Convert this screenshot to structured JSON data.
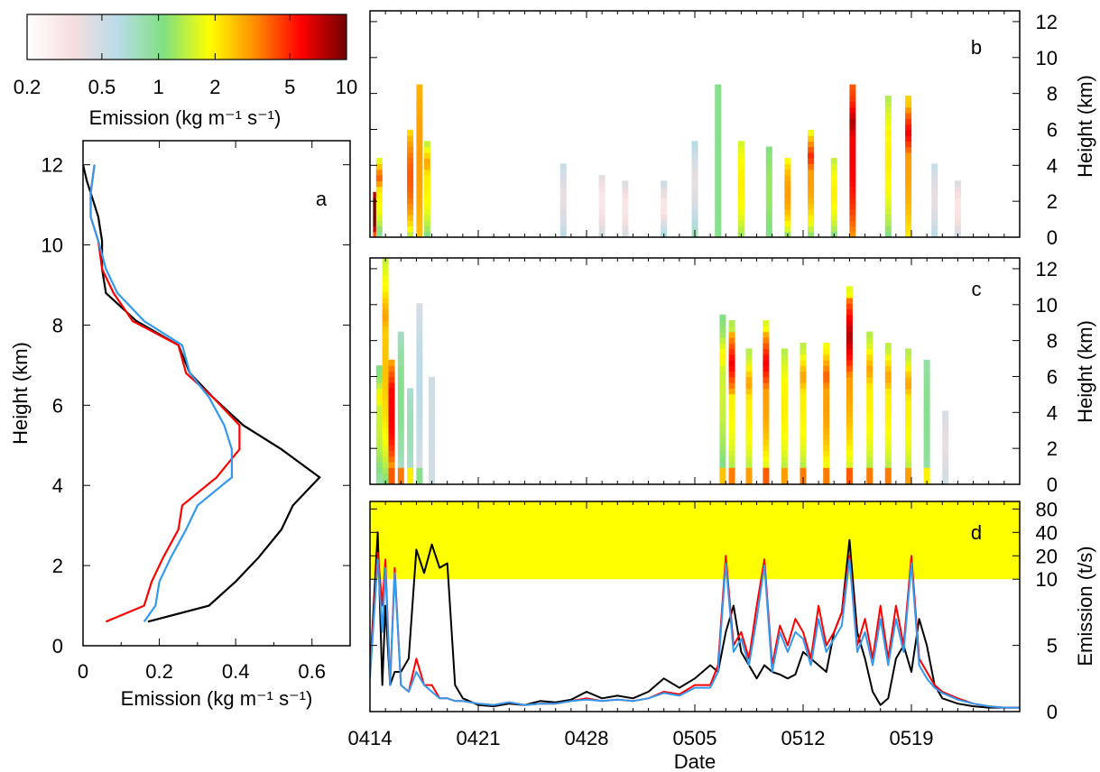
{
  "colorbar": {
    "label": "Emission (kg m⁻¹ s⁻¹)",
    "ticks": [
      0.2,
      0.5,
      1,
      2,
      5,
      10
    ],
    "tick_labels": [
      "0.2",
      "0.5",
      "1",
      "2",
      "5",
      "10"
    ],
    "scale": "log",
    "range": [
      0.2,
      10
    ],
    "colors": [
      "#ffffff",
      "#f6dede",
      "#b8dce8",
      "#80e080",
      "#ffff00",
      "#ff8c00",
      "#ff0000",
      "#700000"
    ]
  },
  "chart_data": [
    {
      "panel": "a",
      "type": "line",
      "xlabel": "Emission (kg m⁻¹ s⁻¹)",
      "ylabel": "Height (km)",
      "xlim": [
        0,
        0.7
      ],
      "ylim": [
        0,
        12.6
      ],
      "xticks": [
        0,
        0.2,
        0.4,
        0.6
      ],
      "yticks": [
        0,
        2,
        4,
        6,
        8,
        10,
        12
      ],
      "series": [
        {
          "color": "#000000",
          "x": [
            0.17,
            0.33,
            0.4,
            0.46,
            0.52,
            0.55,
            0.62,
            0.52,
            0.42,
            0.34,
            0.28,
            0.25,
            0.14,
            0.06,
            0.05,
            0.05,
            0.04,
            0.02,
            0.01,
            0.0
          ],
          "y": [
            0.6,
            1.0,
            1.6,
            2.2,
            2.9,
            3.5,
            4.2,
            4.9,
            5.5,
            6.2,
            6.8,
            7.5,
            8.1,
            8.8,
            9.4,
            10.1,
            10.7,
            11.3,
            11.6,
            12.0
          ]
        },
        {
          "color": "#ff0000",
          "x": [
            0.06,
            0.16,
            0.18,
            0.21,
            0.25,
            0.26,
            0.35,
            0.41,
            0.41,
            0.34,
            0.27,
            0.25,
            0.13,
            0.08,
            0.05,
            0.04,
            0.02,
            0.02,
            0.03
          ],
          "y": [
            0.6,
            1.0,
            1.6,
            2.2,
            2.9,
            3.5,
            4.2,
            4.9,
            5.5,
            6.2,
            6.8,
            7.5,
            8.1,
            8.8,
            9.4,
            10.1,
            10.7,
            11.3,
            12.0
          ]
        },
        {
          "color": "#3399ee",
          "x": [
            0.16,
            0.19,
            0.2,
            0.23,
            0.27,
            0.3,
            0.39,
            0.39,
            0.37,
            0.33,
            0.28,
            0.26,
            0.16,
            0.09,
            0.06,
            0.04,
            0.02,
            0.02,
            0.03
          ],
          "y": [
            0.6,
            1.0,
            1.6,
            2.2,
            2.9,
            3.5,
            4.2,
            4.9,
            5.5,
            6.2,
            6.8,
            7.5,
            8.1,
            8.8,
            9.4,
            10.1,
            10.7,
            11.3,
            12.0
          ]
        }
      ]
    },
    {
      "panel": "b",
      "type": "heatmap",
      "ylabel": "Height (km)",
      "ylim": [
        0,
        12.6
      ],
      "yticks": [
        0,
        2,
        4,
        6,
        8,
        10,
        12
      ],
      "xlim": [
        0,
        42
      ],
      "value_units": "kg m-1 s-1",
      "columns": [
        [
          0.4,
          1.5,
          2.5,
          2.6,
          12.0,
          6.0
        ],
        [
          0.6,
          0.3,
          0.8,
          4.5,
          2.0,
          4.0
        ],
        [
          2.6,
          0.3,
          1.2,
          6.0,
          4.0,
          1.0
        ],
        [
          3.2,
          0.3,
          2.5,
          8.5,
          3.0,
          1.0
        ],
        [
          3.7,
          0.3,
          1.0,
          5.5,
          2.0,
          3.0
        ],
        [
          12.5,
          0.3,
          0.6,
          4.0,
          0.4,
          0.3
        ],
        [
          15.0,
          0.3,
          0.5,
          3.5,
          0.3,
          0.3
        ],
        [
          16.5,
          0.3,
          0.5,
          3.0,
          0.3,
          0.3
        ],
        [
          19.0,
          0.3,
          0.7,
          3.2,
          0.3,
          0.4
        ],
        [
          21.0,
          0.3,
          0.8,
          5.5,
          0.4,
          0.5
        ],
        [
          22.5,
          0.3,
          1.0,
          8.5,
          1.0,
          1.0
        ],
        [
          24.0,
          0.3,
          1.2,
          5.5,
          2.0,
          1.0
        ],
        [
          25.8,
          0.3,
          1.0,
          5.0,
          1.2,
          1.0
        ],
        [
          27.0,
          0.3,
          1.0,
          4.5,
          3.0,
          1.0
        ],
        [
          28.5,
          0.3,
          1.0,
          6.0,
          3.0,
          5.0
        ],
        [
          30.0,
          0.3,
          1.0,
          4.5,
          2.0,
          1.0
        ],
        [
          31.2,
          0.3,
          3.0,
          8.5,
          6.0,
          8.0
        ],
        [
          33.5,
          0.3,
          1.0,
          7.8,
          2.0,
          2.0
        ],
        [
          34.8,
          0.3,
          2.0,
          7.8,
          3.0,
          6.0
        ],
        [
          36.5,
          0.3,
          0.6,
          4.0,
          0.4,
          0.3
        ],
        [
          38.0,
          0.3,
          0.5,
          3.0,
          0.3,
          0.3
        ]
      ]
    },
    {
      "panel": "c",
      "type": "heatmap",
      "ylabel": "Height (km)",
      "ylim": [
        0,
        12.6
      ],
      "yticks": [
        0,
        2,
        4,
        6,
        8,
        10,
        12
      ],
      "xlim": [
        0,
        42
      ],
      "value_units": "kg m-1 s-1",
      "columns": [
        [
          0.6,
          0.3,
          0.8,
          6.5,
          1.5,
          2.0
        ],
        [
          1.0,
          0.3,
          1.0,
          12.5,
          2.5,
          3.0
        ],
        [
          1.4,
          4.0,
          1.0,
          7.0,
          6.0,
          6.0
        ],
        [
          2.0,
          3.5,
          0.6,
          8.5,
          1.0,
          1.0
        ],
        [
          2.6,
          2.0,
          0.6,
          5.5,
          0.8,
          0.8
        ],
        [
          3.2,
          1.0,
          0.4,
          10.0,
          0.6,
          0.6
        ],
        [
          4.0,
          0.3,
          0.5,
          6.0,
          0.5,
          0.5
        ],
        [
          22.8,
          2.5,
          0.8,
          9.5,
          1.5,
          2.0
        ],
        [
          23.4,
          3.5,
          1.0,
          9.0,
          2.0,
          6.0
        ],
        [
          24.5,
          3.0,
          1.0,
          7.5,
          2.0,
          3.0
        ],
        [
          25.6,
          4.0,
          1.0,
          9.0,
          3.0,
          6.0
        ],
        [
          26.8,
          3.0,
          1.0,
          7.5,
          2.0,
          2.0
        ],
        [
          28.0,
          3.5,
          1.0,
          8.0,
          2.0,
          3.0
        ],
        [
          29.5,
          3.5,
          1.0,
          8.0,
          3.0,
          4.0
        ],
        [
          31.0,
          4.0,
          1.0,
          11.0,
          3.0,
          8.0
        ],
        [
          32.3,
          3.5,
          1.0,
          8.5,
          2.0,
          3.0
        ],
        [
          33.5,
          3.5,
          1.0,
          8.0,
          2.0,
          3.0
        ],
        [
          34.8,
          3.0,
          1.0,
          7.5,
          2.0,
          3.0
        ],
        [
          36.0,
          2.0,
          0.8,
          7.0,
          1.0,
          1.0
        ],
        [
          37.2,
          0.3,
          0.5,
          4.0,
          0.4,
          0.3
        ]
      ]
    },
    {
      "panel": "d",
      "type": "line",
      "xlabel": "Date",
      "ylabel": "Emission (t/s)",
      "xlim": [
        0,
        42
      ],
      "xticks": [
        0,
        7,
        14,
        21,
        28,
        35
      ],
      "xtick_labels": [
        "0414",
        "0421",
        "0428",
        "0505",
        "0512",
        "0519"
      ],
      "yscale": "linear below 10, log above 10",
      "ylim": [
        0,
        100
      ],
      "yticks": [
        0,
        5,
        10,
        20,
        40,
        80
      ],
      "yticklabels": [
        "0",
        "5",
        "10",
        "20",
        "40",
        "80"
      ],
      "shaded_band": {
        "from": 10,
        "to": 100,
        "color": "#ffff00"
      },
      "x": [
        0,
        0.5,
        0.8,
        1,
        1.3,
        1.6,
        2,
        2.5,
        3,
        3.5,
        4,
        4.5,
        5,
        5.5,
        6,
        7,
        8,
        9,
        10,
        11,
        12,
        13,
        14,
        15,
        16,
        17,
        18,
        19,
        20,
        21,
        22,
        22.5,
        23,
        23.5,
        24,
        24.5,
        25,
        25.5,
        26,
        26.5,
        27,
        27.5,
        28,
        28.5,
        29,
        29.5,
        30,
        30.5,
        31,
        31.5,
        32,
        32.5,
        33,
        33.5,
        34,
        34.5,
        35,
        35.5,
        36,
        36.5,
        37,
        38,
        39,
        40,
        41,
        42
      ],
      "series": [
        {
          "color": "#000000",
          "values": [
            3,
            40,
            2,
            8,
            2,
            3,
            3,
            4,
            24,
            12,
            28,
            14,
            16,
            2,
            1,
            0.5,
            0.4,
            0.6,
            0.5,
            0.8,
            0.7,
            0.9,
            1.5,
            1.0,
            1.2,
            1.0,
            1.5,
            2.5,
            1.8,
            2.5,
            3.5,
            3.0,
            6.0,
            8.0,
            4.5,
            3.5,
            2.5,
            3.5,
            3.0,
            2.8,
            2.5,
            2.8,
            4.5,
            4.0,
            3.5,
            3.0,
            6.0,
            7.5,
            32,
            6.0,
            4.0,
            1.5,
            0.5,
            1.0,
            4.0,
            5.0,
            3.0,
            7.0,
            5.0,
            2.0,
            1.0,
            0.6,
            0.4,
            0.3,
            0.3,
            0.3
          ]
        },
        {
          "color": "#ff0000",
          "values": [
            3,
            22,
            8,
            18,
            2,
            14,
            2,
            1.5,
            4,
            2,
            2,
            1,
            1,
            0.8,
            0.8,
            0.6,
            0.5,
            0.7,
            0.5,
            0.6,
            0.6,
            0.8,
            1.0,
            0.8,
            0.9,
            0.8,
            1.0,
            1.5,
            1.3,
            2.0,
            2.0,
            3.5,
            20,
            5.0,
            6.0,
            4.0,
            8.0,
            18,
            3.5,
            6.5,
            5.0,
            7.0,
            6.0,
            4.0,
            8.0,
            5.0,
            6.0,
            7.5,
            20,
            5.0,
            7.0,
            4.0,
            8.0,
            4.0,
            8.0,
            5.0,
            20,
            4.0,
            3.0,
            2.0,
            1.5,
            1.0,
            0.6,
            0.4,
            0.3,
            0.3
          ]
        },
        {
          "color": "#3399ee",
          "values": [
            2.5,
            18,
            6,
            14,
            2,
            12,
            2,
            1.5,
            3,
            2,
            1.5,
            1,
            1,
            0.8,
            0.8,
            0.6,
            0.5,
            0.7,
            0.5,
            0.6,
            0.6,
            0.8,
            0.9,
            0.8,
            0.9,
            0.8,
            1.0,
            1.4,
            1.2,
            1.8,
            1.8,
            3.0,
            16,
            4.5,
            5.5,
            3.5,
            7.0,
            15,
            3.0,
            6.0,
            4.5,
            6.0,
            5.5,
            3.5,
            7.0,
            4.5,
            5.5,
            6.5,
            18,
            4.5,
            6.0,
            3.5,
            7.0,
            3.5,
            7.0,
            4.5,
            16,
            3.5,
            2.5,
            1.8,
            1.4,
            0.9,
            0.6,
            0.4,
            0.3,
            0.3
          ]
        }
      ]
    }
  ],
  "panel_labels": {
    "a": "a",
    "b": "b",
    "c": "c",
    "d": "d"
  }
}
